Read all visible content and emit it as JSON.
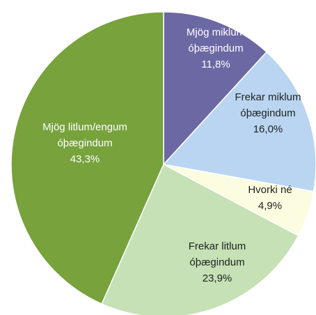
{
  "chart_data": {
    "type": "pie",
    "categories": [
      [
        "Mjög miklum",
        "óþægindum"
      ],
      [
        "Frekar miklum",
        "óþægindum"
      ],
      [
        "Hvorki né"
      ],
      [
        "Frekar litlum",
        "óþægindum"
      ],
      [
        "Mjög litlum/engum",
        "óþægindum"
      ]
    ],
    "values": [
      11.8,
      16.0,
      4.9,
      23.9,
      43.3
    ],
    "value_labels": [
      "11,8%",
      "16,0%",
      "4,9%",
      "23,9%",
      "43,3%"
    ],
    "colors": [
      "#6b68a4",
      "#b9d5f1",
      "#fbfce0",
      "#c5e1b5",
      "#77a23c"
    ]
  }
}
